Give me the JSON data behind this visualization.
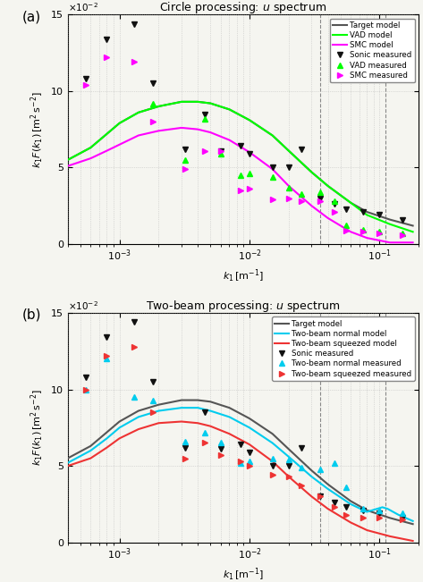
{
  "fig_width": 4.73,
  "fig_height": 6.51,
  "dpi": 100,
  "xlim": [
    0.0004,
    0.2
  ],
  "ylim": [
    0,
    0.15
  ],
  "vline1": 0.035,
  "vline2": 0.11,
  "title_a": "Circle processing: $u$ spectrum",
  "title_b": "Two-beam processing: $u$ spectrum",
  "target_model_color": "#555555",
  "vad_model_color": "#00ff00",
  "smc_model_color": "#ff00ff",
  "twobeam_normal_color": "#00ccee",
  "twobeam_squeezed_color": "#ee3333",
  "target_model_k1": [
    0.0004,
    0.0006,
    0.0008,
    0.001,
    0.0014,
    0.002,
    0.003,
    0.004,
    0.005,
    0.007,
    0.01,
    0.015,
    0.02,
    0.03,
    0.04,
    0.06,
    0.08,
    0.12,
    0.18
  ],
  "target_model_v": [
    0.055,
    0.063,
    0.072,
    0.079,
    0.086,
    0.09,
    0.093,
    0.093,
    0.092,
    0.088,
    0.081,
    0.071,
    0.061,
    0.047,
    0.038,
    0.027,
    0.021,
    0.016,
    0.012
  ],
  "vad_model_k1": [
    0.0004,
    0.0006,
    0.0008,
    0.001,
    0.0014,
    0.002,
    0.003,
    0.004,
    0.005,
    0.007,
    0.01,
    0.015,
    0.02,
    0.03,
    0.04,
    0.06,
    0.08,
    0.12,
    0.18
  ],
  "vad_model_v": [
    0.055,
    0.063,
    0.072,
    0.079,
    0.086,
    0.09,
    0.093,
    0.093,
    0.092,
    0.088,
    0.081,
    0.071,
    0.061,
    0.047,
    0.038,
    0.027,
    0.019,
    0.013,
    0.008
  ],
  "smc_model_k1": [
    0.0004,
    0.0006,
    0.0008,
    0.001,
    0.0014,
    0.002,
    0.003,
    0.004,
    0.005,
    0.007,
    0.01,
    0.015,
    0.02,
    0.03,
    0.04,
    0.06,
    0.08,
    0.12,
    0.18
  ],
  "smc_model_v": [
    0.051,
    0.056,
    0.061,
    0.065,
    0.071,
    0.074,
    0.076,
    0.075,
    0.073,
    0.068,
    0.06,
    0.049,
    0.038,
    0.025,
    0.017,
    0.008,
    0.004,
    0.001,
    0.001
  ],
  "sonic_k1_a": [
    0.00055,
    0.0008,
    0.0013,
    0.0018,
    0.0032,
    0.0045,
    0.006,
    0.0085,
    0.01,
    0.015,
    0.02,
    0.025,
    0.035,
    0.045,
    0.055,
    0.075,
    0.1,
    0.15
  ],
  "sonic_v_a": [
    0.108,
    0.134,
    0.144,
    0.105,
    0.062,
    0.085,
    0.061,
    0.064,
    0.059,
    0.05,
    0.05,
    0.062,
    0.03,
    0.026,
    0.023,
    0.021,
    0.019,
    0.016
  ],
  "vad_meas_k1": [
    0.0018,
    0.0032,
    0.0045,
    0.006,
    0.0085,
    0.01,
    0.015,
    0.02,
    0.025,
    0.035,
    0.045,
    0.055,
    0.075,
    0.1,
    0.15
  ],
  "vad_meas_v": [
    0.092,
    0.055,
    0.082,
    0.059,
    0.045,
    0.046,
    0.044,
    0.037,
    0.033,
    0.034,
    0.028,
    0.012,
    0.0095,
    0.008,
    0.007
  ],
  "smc_meas_k1": [
    0.00055,
    0.0008,
    0.0013,
    0.0018,
    0.0032,
    0.0045,
    0.006,
    0.0085,
    0.01,
    0.015,
    0.02,
    0.025,
    0.035,
    0.045,
    0.055,
    0.075,
    0.1,
    0.15
  ],
  "smc_meas_v": [
    0.104,
    0.122,
    0.119,
    0.08,
    0.049,
    0.061,
    0.061,
    0.035,
    0.036,
    0.029,
    0.03,
    0.028,
    0.028,
    0.021,
    0.009,
    0.008,
    0.007,
    0.006
  ],
  "sonic_k1_b": [
    0.00055,
    0.0008,
    0.0013,
    0.0018,
    0.0032,
    0.0045,
    0.006,
    0.0085,
    0.01,
    0.015,
    0.02,
    0.025,
    0.035,
    0.045,
    0.055,
    0.075,
    0.1,
    0.15
  ],
  "sonic_v_b": [
    0.108,
    0.134,
    0.144,
    0.105,
    0.062,
    0.085,
    0.061,
    0.064,
    0.059,
    0.05,
    0.05,
    0.062,
    0.03,
    0.026,
    0.023,
    0.021,
    0.019,
    0.016
  ],
  "tbn_model_k1": [
    0.0004,
    0.0006,
    0.0008,
    0.001,
    0.0014,
    0.002,
    0.003,
    0.004,
    0.005,
    0.007,
    0.01,
    0.015,
    0.02,
    0.03,
    0.04,
    0.06,
    0.08,
    0.105,
    0.115,
    0.14,
    0.18
  ],
  "tbn_model_v": [
    0.052,
    0.06,
    0.068,
    0.075,
    0.082,
    0.086,
    0.088,
    0.088,
    0.086,
    0.082,
    0.075,
    0.065,
    0.056,
    0.043,
    0.035,
    0.025,
    0.02,
    0.023,
    0.022,
    0.018,
    0.014
  ],
  "tbs_model_k1": [
    0.0004,
    0.0006,
    0.0008,
    0.001,
    0.0014,
    0.002,
    0.003,
    0.004,
    0.005,
    0.007,
    0.01,
    0.015,
    0.02,
    0.03,
    0.04,
    0.06,
    0.08,
    0.12,
    0.18
  ],
  "tbs_model_v": [
    0.05,
    0.055,
    0.062,
    0.068,
    0.074,
    0.078,
    0.079,
    0.078,
    0.076,
    0.071,
    0.064,
    0.053,
    0.043,
    0.03,
    0.022,
    0.013,
    0.008,
    0.004,
    0.001
  ],
  "tbn_meas_k1": [
    0.00055,
    0.0008,
    0.0013,
    0.0018,
    0.0032,
    0.0045,
    0.006,
    0.0085,
    0.01,
    0.015,
    0.02,
    0.025,
    0.035,
    0.045,
    0.055,
    0.075,
    0.1,
    0.15
  ],
  "tbn_meas_v": [
    0.1,
    0.12,
    0.095,
    0.093,
    0.066,
    0.072,
    0.065,
    0.052,
    0.053,
    0.055,
    0.054,
    0.049,
    0.048,
    0.052,
    0.036,
    0.022,
    0.021,
    0.019
  ],
  "tbs_meas_k1": [
    0.00055,
    0.0008,
    0.0013,
    0.0018,
    0.0032,
    0.0045,
    0.006,
    0.0085,
    0.01,
    0.015,
    0.02,
    0.025,
    0.035,
    0.045,
    0.055,
    0.075,
    0.1,
    0.15
  ],
  "tbs_meas_v": [
    0.1,
    0.122,
    0.128,
    0.085,
    0.055,
    0.065,
    0.057,
    0.053,
    0.05,
    0.044,
    0.043,
    0.037,
    0.03,
    0.023,
    0.018,
    0.016,
    0.016,
    0.015
  ]
}
